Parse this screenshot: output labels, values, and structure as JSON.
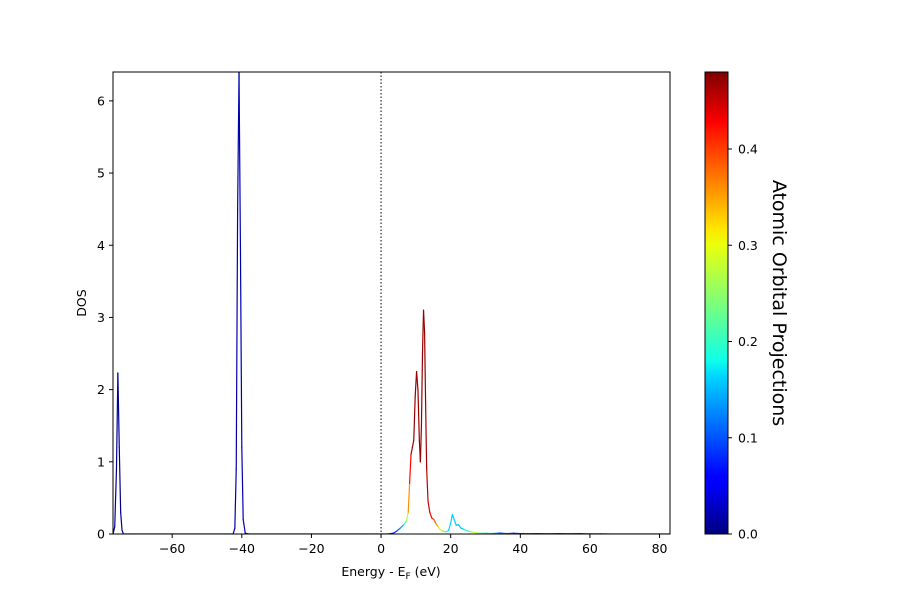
{
  "chart_data": {
    "type": "line",
    "xlabel": "Energy - E",
    "xlabel_sub": "F",
    "xlabel_unit": " (eV)",
    "ylabel": "DOS",
    "xlim": [
      -77,
      83
    ],
    "ylim": [
      0,
      6.4
    ],
    "x_ticks": [
      -60,
      -40,
      -20,
      0,
      20,
      40,
      60,
      80
    ],
    "x_tick_labels": [
      "−60",
      "−40",
      "−20",
      "0",
      "20",
      "40",
      "60",
      "80"
    ],
    "y_ticks": [
      0,
      1,
      2,
      3,
      4,
      5,
      6
    ],
    "y_tick_labels": [
      "0",
      "1",
      "2",
      "3",
      "4",
      "5",
      "6"
    ],
    "fermi_level_line": {
      "x": 0,
      "style": "dotted"
    },
    "colorbar": {
      "label": "Atomic Orbital Projections",
      "range": [
        0,
        0.48
      ],
      "colormap": "jet",
      "ticks": [
        0.0,
        0.1,
        0.2,
        0.3,
        0.4
      ],
      "tick_labels": [
        "0.0",
        "0.1",
        "0.2",
        "0.3",
        "0.4"
      ]
    },
    "series": [
      {
        "points": [
          [
            -77,
            0.0,
            0.0
          ],
          [
            -76.5,
            0.1,
            0.01
          ],
          [
            -76,
            0.9,
            0.01
          ],
          [
            -75.6,
            2.23,
            0.01
          ],
          [
            -75.2,
            1.2,
            0.01
          ],
          [
            -74.8,
            0.3,
            0.01
          ],
          [
            -74.4,
            0.05,
            0.01
          ],
          [
            -74,
            0.0,
            0.01
          ],
          [
            -72,
            0.0,
            0.02
          ],
          [
            -60,
            0.0,
            0.02
          ],
          [
            -45,
            0.0,
            0.02
          ],
          [
            -42.5,
            0.0,
            0.02
          ],
          [
            -42,
            0.08,
            0.02
          ],
          [
            -41.6,
            0.9,
            0.02
          ],
          [
            -41.2,
            4.5,
            0.02
          ],
          [
            -40.8,
            6.4,
            0.02
          ],
          [
            -40.4,
            4.0,
            0.02
          ],
          [
            -40,
            1.2,
            0.02
          ],
          [
            -39.6,
            0.2,
            0.02
          ],
          [
            -39,
            0.01,
            0.02
          ],
          [
            -38,
            0.0,
            0.03
          ],
          [
            -20,
            0.0,
            0.05
          ],
          [
            -5,
            0.0,
            0.05
          ],
          [
            0,
            0.0,
            0.05
          ],
          [
            2,
            0.0,
            0.06
          ],
          [
            3.5,
            0.01,
            0.07
          ],
          [
            4.5,
            0.04,
            0.09
          ],
          [
            5.5,
            0.08,
            0.12
          ],
          [
            6.5,
            0.13,
            0.15
          ],
          [
            7.3,
            0.18,
            0.22
          ],
          [
            7.8,
            0.3,
            0.32
          ],
          [
            8.2,
            0.7,
            0.4
          ],
          [
            8.6,
            1.1,
            0.45
          ],
          [
            9,
            1.2,
            0.47
          ],
          [
            9.4,
            1.3,
            0.47
          ],
          [
            9.8,
            1.9,
            0.47
          ],
          [
            10.2,
            2.25,
            0.47
          ],
          [
            10.6,
            2.0,
            0.47
          ],
          [
            11,
            1.3,
            0.47
          ],
          [
            11.3,
            1.0,
            0.47
          ],
          [
            11.6,
            1.5,
            0.47
          ],
          [
            11.9,
            2.5,
            0.47
          ],
          [
            12.2,
            3.1,
            0.47
          ],
          [
            12.5,
            2.8,
            0.47
          ],
          [
            12.8,
            1.8,
            0.47
          ],
          [
            13.1,
            0.9,
            0.46
          ],
          [
            13.5,
            0.45,
            0.45
          ],
          [
            14,
            0.3,
            0.44
          ],
          [
            14.6,
            0.22,
            0.42
          ],
          [
            15.2,
            0.2,
            0.4
          ],
          [
            15.8,
            0.14,
            0.37
          ],
          [
            16.4,
            0.1,
            0.34
          ],
          [
            17,
            0.06,
            0.3
          ],
          [
            17.8,
            0.04,
            0.25
          ],
          [
            18.6,
            0.03,
            0.2
          ],
          [
            19.4,
            0.05,
            0.17
          ],
          [
            20,
            0.15,
            0.16
          ],
          [
            20.5,
            0.27,
            0.16
          ],
          [
            21,
            0.2,
            0.16
          ],
          [
            21.6,
            0.12,
            0.16
          ],
          [
            22.2,
            0.13,
            0.15
          ],
          [
            23,
            0.08,
            0.15
          ],
          [
            24,
            0.06,
            0.17
          ],
          [
            25,
            0.04,
            0.2
          ],
          [
            26,
            0.03,
            0.26
          ],
          [
            27,
            0.02,
            0.3
          ],
          [
            28,
            0.01,
            0.24
          ],
          [
            30,
            0.01,
            0.2
          ],
          [
            32,
            0.005,
            0.15
          ],
          [
            34,
            0.015,
            0.12
          ],
          [
            36,
            0.005,
            0.1
          ],
          [
            38,
            0.01,
            0.09
          ],
          [
            40,
            0.005,
            0.08
          ],
          [
            42,
            0.003,
            0.09
          ],
          [
            45,
            0.006,
            0.08
          ],
          [
            48,
            0.003,
            0.1
          ],
          [
            51,
            0.006,
            0.09
          ],
          [
            54,
            0.003,
            0.08
          ],
          [
            57,
            0.005,
            0.09
          ],
          [
            60,
            0.002,
            0.08
          ],
          [
            63,
            0.002,
            0.08
          ],
          [
            66,
            0.0,
            0.08
          ],
          [
            70,
            0.0,
            0.08
          ],
          [
            75,
            0.0,
            0.08
          ],
          [
            80,
            0.0,
            0.08
          ],
          [
            83,
            0.0,
            0.08
          ]
        ]
      }
    ]
  }
}
